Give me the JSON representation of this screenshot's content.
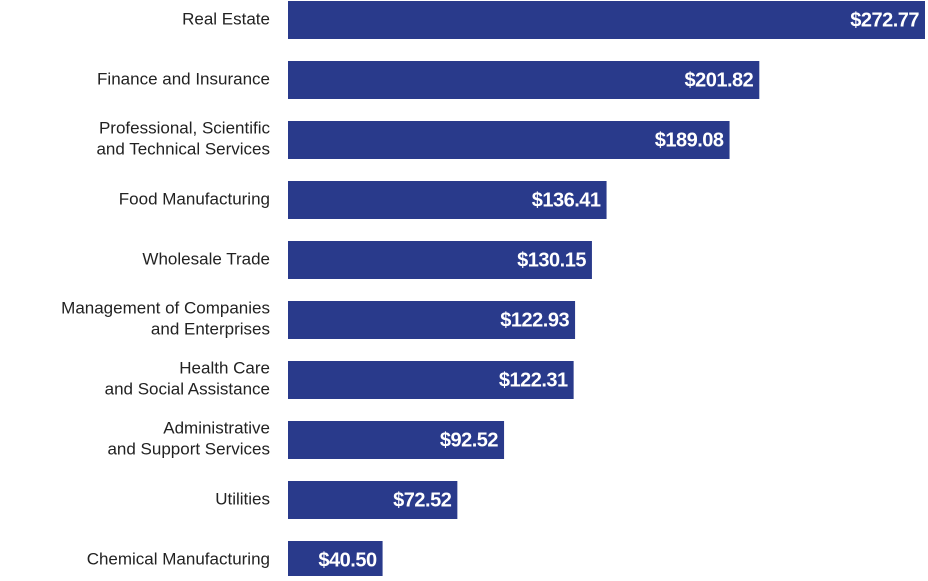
{
  "chart_data": {
    "type": "hbar",
    "categories": [
      "Real Estate",
      "Finance and Insurance",
      [
        "Professional, Scientific",
        "and Technical Services"
      ],
      "Food Manufacturing",
      "Wholesale Trade",
      [
        "Management of Companies",
        "and Enterprises"
      ],
      [
        "Health Care",
        "and Social Assistance"
      ],
      [
        "Administrative",
        "and Support Services"
      ],
      "Utilities",
      "Chemical Manufacturing"
    ],
    "values": [
      272.77,
      201.82,
      189.08,
      136.41,
      130.15,
      122.93,
      122.31,
      92.52,
      72.52,
      40.5
    ],
    "value_labels": [
      "$272.77",
      "$201.82",
      "$189.08",
      "$136.41",
      "$130.15",
      "$122.93",
      "$122.31",
      "$92.52",
      "$72.52",
      "$40.50"
    ],
    "color": "#293a8b"
  }
}
